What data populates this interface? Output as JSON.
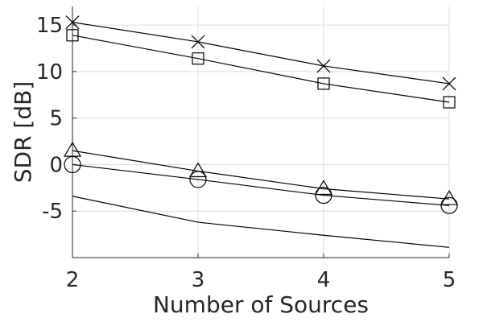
{
  "chart_data": {
    "type": "line",
    "xlabel": "Number of Sources",
    "ylabel": "SDR [dB]",
    "x": [
      2,
      3,
      4,
      5
    ],
    "xlim": [
      2,
      5
    ],
    "ylim": [
      -10,
      17
    ],
    "xticks": [
      "2",
      "3",
      "4",
      "5"
    ],
    "yticks": [
      {
        "value": 15,
        "label": "15"
      },
      {
        "value": 10,
        "label": "10"
      },
      {
        "value": 5,
        "label": "5"
      },
      {
        "value": 0,
        "label": "0"
      },
      {
        "value": -5,
        "label": "-5"
      }
    ],
    "grid": true,
    "series": [
      {
        "id": "cross",
        "marker": "x",
        "values": [
          15.3,
          13.2,
          10.6,
          8.7
        ]
      },
      {
        "id": "square",
        "marker": "square",
        "values": [
          13.9,
          11.4,
          8.7,
          6.7
        ]
      },
      {
        "id": "triangle",
        "marker": "triangle",
        "values": [
          1.5,
          -0.7,
          -2.6,
          -3.7
        ]
      },
      {
        "id": "circle",
        "marker": "circle",
        "values": [
          0.0,
          -1.6,
          -3.3,
          -4.4
        ]
      },
      {
        "id": "plain",
        "marker": "none",
        "values": [
          -3.4,
          -6.2,
          -7.6,
          -8.9
        ]
      }
    ]
  }
}
